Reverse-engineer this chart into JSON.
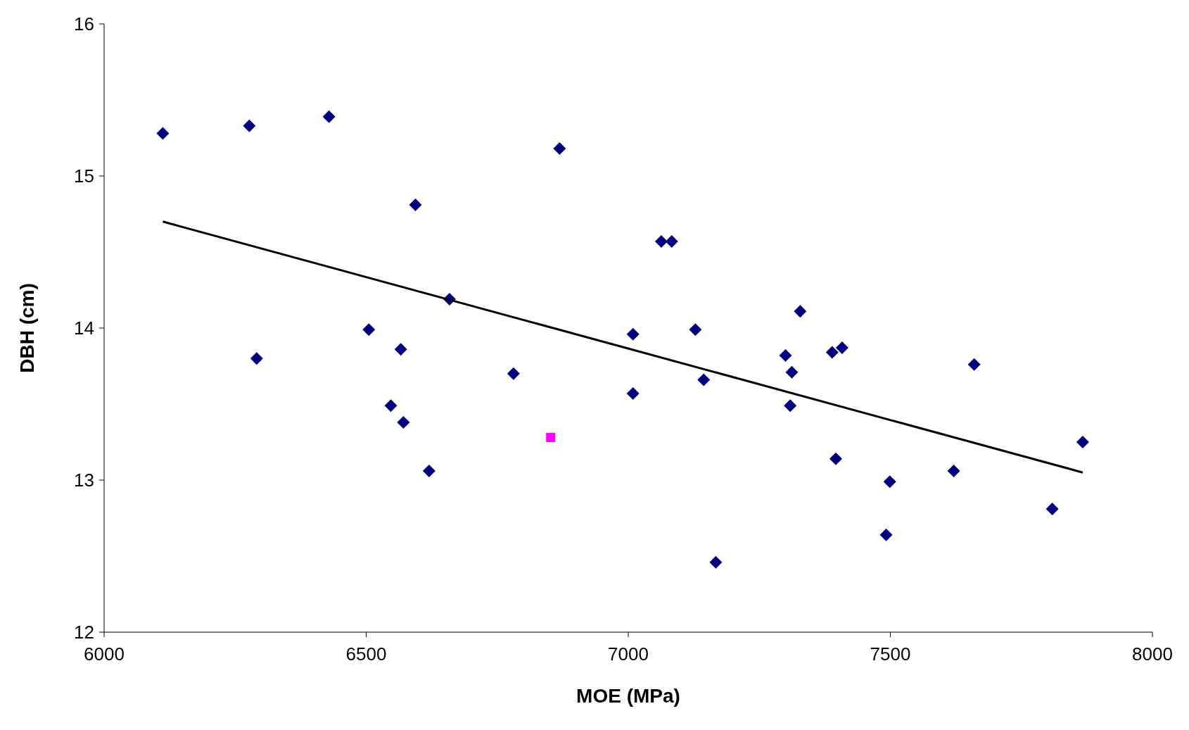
{
  "chart_data": {
    "type": "scatter",
    "xlabel": "MOE (MPa)",
    "ylabel": "DBH (cm)",
    "xlim": [
      6000,
      8000
    ],
    "xticks": [
      6000,
      6500,
      7000,
      7500,
      8000
    ],
    "ylim": [
      12,
      16
    ],
    "yticks": [
      12,
      13,
      14,
      15,
      16
    ],
    "grid": false,
    "series": [
      {
        "marker": "diamond",
        "color": "#000080",
        "x": [
          6112,
          6277,
          6429,
          6291,
          6505,
          6547,
          6566,
          6571,
          6594,
          6620,
          6659,
          6781,
          6869,
          7009,
          7009,
          7063,
          7083,
          7128,
          7144,
          7167,
          7300,
          7312,
          7309,
          7328,
          7389,
          7408,
          7396,
          7499,
          7492,
          7621,
          7660,
          7809,
          7867
        ],
        "values": [
          15.28,
          15.33,
          15.39,
          13.8,
          13.99,
          13.49,
          13.86,
          13.38,
          14.81,
          13.06,
          14.19,
          13.7,
          15.18,
          13.96,
          13.57,
          14.57,
          14.57,
          13.99,
          13.66,
          12.46,
          13.82,
          13.71,
          13.49,
          14.11,
          13.84,
          13.87,
          13.14,
          12.99,
          12.64,
          13.06,
          13.76,
          12.81,
          13.25
        ]
      },
      {
        "marker": "square",
        "color": "#ff00ff",
        "x": [
          6852
        ],
        "values": [
          13.28
        ]
      },
      {
        "type": "line",
        "marker": "none",
        "color": "#000000",
        "x": [
          6112,
          7867
        ],
        "values": [
          14.7,
          13.05
        ]
      }
    ]
  }
}
